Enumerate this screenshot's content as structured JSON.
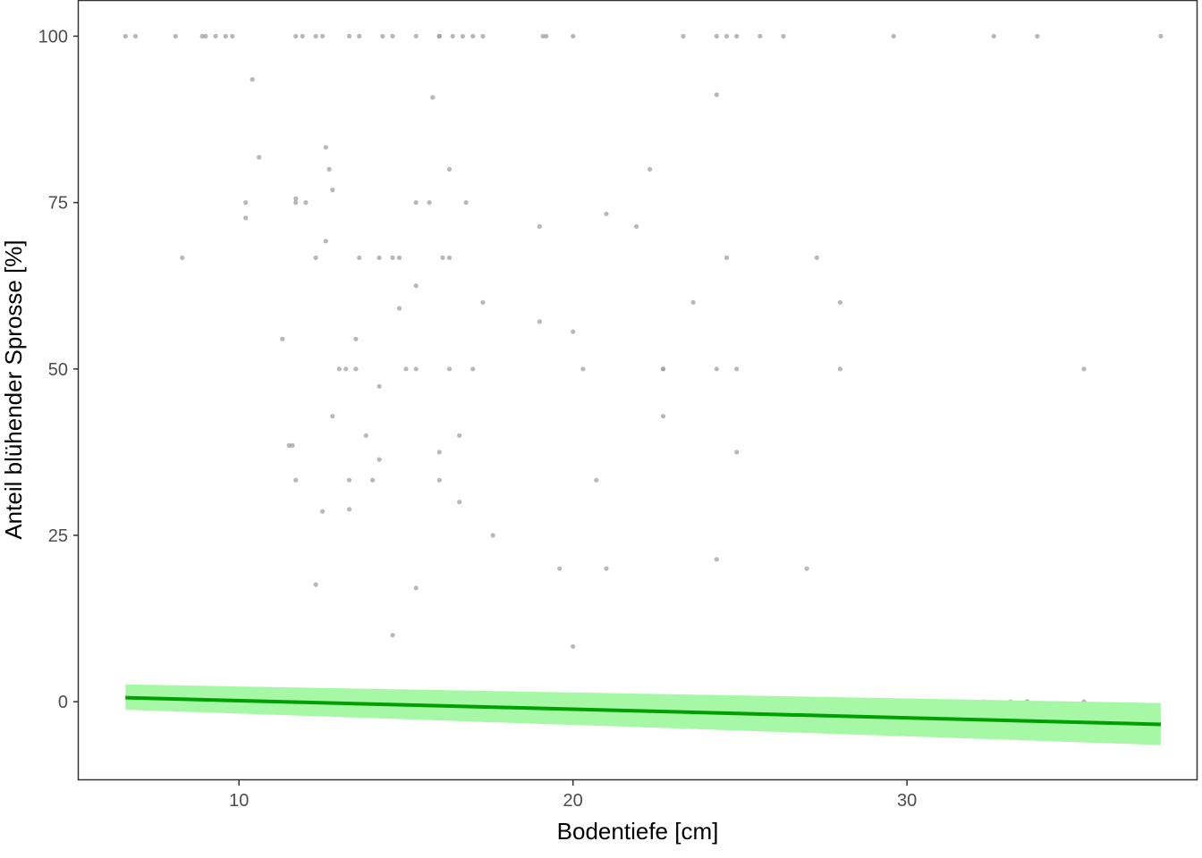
{
  "chart_data": {
    "type": "scatter",
    "title": "",
    "xlabel": "Bodentiefe [cm]",
    "ylabel": "Anteil blühender Sprosse [%]",
    "xlim": [
      5.2,
      38.7
    ],
    "ylim": [
      -11.8,
      105.3
    ],
    "x_ticks": [
      10,
      20,
      30
    ],
    "y_ticks": [
      0,
      25,
      50,
      75,
      100
    ],
    "grid": false,
    "legend": "none",
    "colors": {
      "points": "#9a9a9a",
      "fit_line": "#00a000",
      "ci_band": "#a6f7a6",
      "panel_border": "#333333",
      "tick_text": "#4d4d4d"
    },
    "series": [
      {
        "type": "scatter",
        "points": [
          [
            6.6,
            100
          ],
          [
            6.9,
            100
          ],
          [
            8.1,
            100
          ],
          [
            8.9,
            100
          ],
          [
            9.0,
            100
          ],
          [
            9.3,
            100
          ],
          [
            9.6,
            100
          ],
          [
            9.8,
            100
          ],
          [
            11.7,
            100
          ],
          [
            11.9,
            100
          ],
          [
            12.3,
            100
          ],
          [
            12.5,
            100
          ],
          [
            13.3,
            100
          ],
          [
            13.6,
            100
          ],
          [
            14.3,
            100
          ],
          [
            14.6,
            100
          ],
          [
            15.3,
            100
          ],
          [
            16.0,
            100
          ],
          [
            16.0,
            100
          ],
          [
            16.4,
            100
          ],
          [
            16.7,
            100
          ],
          [
            17.0,
            100
          ],
          [
            17.3,
            100
          ],
          [
            19.1,
            100
          ],
          [
            19.2,
            100
          ],
          [
            20.0,
            100
          ],
          [
            23.3,
            100
          ],
          [
            24.3,
            100
          ],
          [
            24.6,
            100
          ],
          [
            24.9,
            100
          ],
          [
            25.6,
            100
          ],
          [
            26.3,
            100
          ],
          [
            29.6,
            100
          ],
          [
            32.6,
            100
          ],
          [
            33.9,
            100
          ],
          [
            37.6,
            100
          ],
          [
            10.4,
            93.5
          ],
          [
            15.8,
            90.8
          ],
          [
            24.3,
            91.2
          ],
          [
            12.6,
            83.3
          ],
          [
            10.6,
            81.8
          ],
          [
            12.7,
            80
          ],
          [
            16.3,
            80
          ],
          [
            22.3,
            80
          ],
          [
            12.8,
            76.9
          ],
          [
            11.7,
            75.6
          ],
          [
            10.2,
            75
          ],
          [
            11.7,
            75
          ],
          [
            12.0,
            75
          ],
          [
            15.3,
            75
          ],
          [
            15.7,
            75
          ],
          [
            16.8,
            75
          ],
          [
            10.2,
            72.7
          ],
          [
            21.0,
            73.3
          ],
          [
            21.9,
            71.4
          ],
          [
            19.0,
            71.4
          ],
          [
            12.6,
            69.2
          ],
          [
            8.3,
            66.7
          ],
          [
            12.3,
            66.7
          ],
          [
            13.6,
            66.7
          ],
          [
            14.2,
            66.7
          ],
          [
            14.6,
            66.7
          ],
          [
            14.8,
            66.7
          ],
          [
            16.1,
            66.7
          ],
          [
            16.3,
            66.7
          ],
          [
            24.6,
            66.7
          ],
          [
            27.3,
            66.7
          ],
          [
            15.3,
            62.5
          ],
          [
            23.6,
            60
          ],
          [
            28.0,
            60
          ],
          [
            17.3,
            60
          ],
          [
            14.8,
            59.1
          ],
          [
            19.0,
            57.1
          ],
          [
            20.0,
            55.6
          ],
          [
            11.3,
            54.5
          ],
          [
            13.5,
            54.5
          ],
          [
            13.0,
            50
          ],
          [
            13.2,
            50
          ],
          [
            13.5,
            50
          ],
          [
            15.0,
            50
          ],
          [
            15.3,
            50
          ],
          [
            16.3,
            50
          ],
          [
            17.0,
            50
          ],
          [
            20.3,
            50
          ],
          [
            22.7,
            50
          ],
          [
            22.7,
            50
          ],
          [
            24.3,
            50
          ],
          [
            24.9,
            50
          ],
          [
            28.0,
            50
          ],
          [
            35.3,
            50
          ],
          [
            14.2,
            47.4
          ],
          [
            12.8,
            42.9
          ],
          [
            22.7,
            42.9
          ],
          [
            13.8,
            40
          ],
          [
            16.6,
            40
          ],
          [
            11.5,
            38.5
          ],
          [
            11.6,
            38.5
          ],
          [
            16.0,
            37.5
          ],
          [
            24.9,
            37.5
          ],
          [
            14.2,
            36.4
          ],
          [
            11.7,
            33.3
          ],
          [
            13.3,
            33.3
          ],
          [
            14.0,
            33.3
          ],
          [
            16.0,
            33.3
          ],
          [
            20.7,
            33.3
          ],
          [
            16.6,
            30
          ],
          [
            13.3,
            28.9
          ],
          [
            12.5,
            28.6
          ],
          [
            17.6,
            25
          ],
          [
            24.3,
            21.4
          ],
          [
            19.6,
            20
          ],
          [
            21.0,
            20
          ],
          [
            27.0,
            20
          ],
          [
            12.3,
            17.6
          ],
          [
            15.3,
            17.1
          ],
          [
            14.6,
            10
          ],
          [
            20.0,
            8.3
          ],
          [
            7.5,
            0
          ],
          [
            9.0,
            0
          ],
          [
            9.8,
            0
          ],
          [
            14.2,
            0
          ],
          [
            14.6,
            0
          ],
          [
            14.9,
            0
          ],
          [
            15.2,
            0
          ],
          [
            15.5,
            0
          ],
          [
            15.8,
            0
          ],
          [
            16.1,
            0
          ],
          [
            16.4,
            0
          ],
          [
            17.6,
            0
          ],
          [
            18.0,
            0
          ],
          [
            18.2,
            0
          ],
          [
            18.6,
            0
          ],
          [
            19.0,
            0
          ],
          [
            20.0,
            0
          ],
          [
            20.0,
            0
          ],
          [
            21.3,
            0
          ],
          [
            22.0,
            0
          ],
          [
            22.0,
            0
          ],
          [
            23.1,
            0
          ],
          [
            23.8,
            0
          ],
          [
            24.0,
            0
          ],
          [
            24.2,
            0
          ],
          [
            24.6,
            0
          ],
          [
            24.9,
            0
          ],
          [
            25.6,
            0
          ],
          [
            28.9,
            0
          ],
          [
            30.3,
            0
          ],
          [
            31.3,
            0
          ],
          [
            31.7,
            0
          ],
          [
            32.3,
            0
          ],
          [
            33.1,
            0
          ],
          [
            33.6,
            0
          ],
          [
            33.6,
            0
          ],
          [
            35.3,
            0
          ]
        ]
      },
      {
        "type": "line",
        "x": [
          6.6,
          37.6
        ],
        "y": [
          0.6,
          -3.4
        ],
        "ci_lower": [
          -1.2,
          -6.5
        ],
        "ci_upper": [
          2.6,
          -0.2
        ]
      }
    ]
  }
}
